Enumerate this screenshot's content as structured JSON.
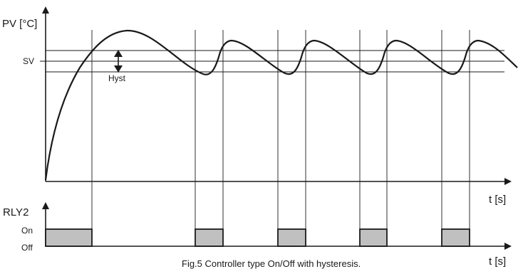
{
  "diagram": {
    "pv_axis_label": "PV [°C]",
    "sv_label": "SV",
    "hyst_label": "Hyst",
    "time_axis_label_top": "t [s]",
    "relay_axis_label": "RLY2",
    "on_label": "On",
    "off_label": "Off",
    "time_axis_label_bottom": "t [s]",
    "caption": "Fig.5 Controller type On/Off with hysteresis.",
    "relay_on_intervals": 5
  }
}
